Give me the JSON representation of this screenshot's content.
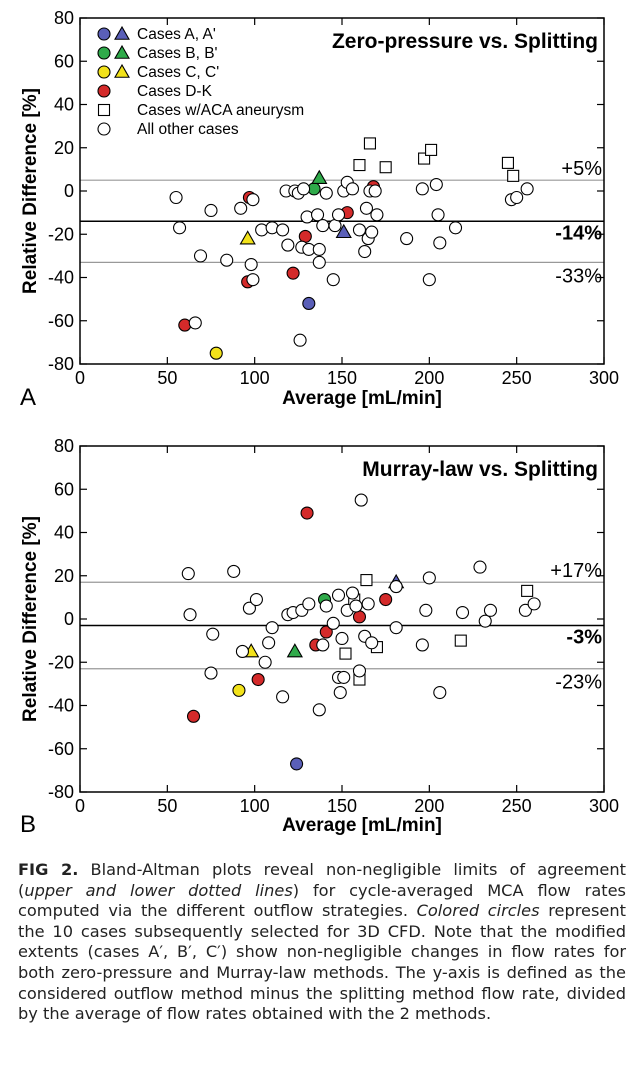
{
  "chart_data": [
    {
      "type": "scatter",
      "panel_letter": "A",
      "title": "Zero-pressure vs. Splitting",
      "xlabel": "Average [mL/min]",
      "ylabel": "Relative Difference [%]",
      "xlim": [
        0,
        300
      ],
      "ylim": [
        -80,
        80
      ],
      "xticks": [
        0,
        50,
        100,
        150,
        200,
        250,
        300
      ],
      "yticks": [
        -80,
        -60,
        -40,
        -20,
        0,
        20,
        40,
        60,
        80
      ],
      "grid": false,
      "legend_position": "top-left",
      "reference_lines": [
        {
          "y": 5,
          "label": "+5%",
          "style": "upper-limit",
          "color": "#999999"
        },
        {
          "y": -14,
          "label": "-14%",
          "style": "mean",
          "color": "#000000"
        },
        {
          "y": -33,
          "label": "-33%",
          "style": "lower-limit",
          "color": "#999999"
        }
      ],
      "series": [
        {
          "name": "Cases A, A'",
          "color": "#5a5fb8",
          "points": [
            {
              "x": 131,
              "y": -52,
              "marker": "circle"
            },
            {
              "x": 151,
              "y": -19,
              "marker": "triangle"
            }
          ]
        },
        {
          "name": "Cases B, B'",
          "color": "#2faa4a",
          "points": [
            {
              "x": 134,
              "y": 1,
              "marker": "circle"
            },
            {
              "x": 137,
              "y": 6,
              "marker": "triangle"
            }
          ]
        },
        {
          "name": "Cases C, C'",
          "color": "#f2e21a",
          "points": [
            {
              "x": 78,
              "y": -75,
              "marker": "circle"
            },
            {
              "x": 96,
              "y": -22,
              "marker": "triangle"
            }
          ]
        },
        {
          "name": "Cases D-K",
          "color": "#d42a2a",
          "points": [
            {
              "x": 60,
              "y": -62,
              "marker": "circle"
            },
            {
              "x": 96,
              "y": -42,
              "marker": "circle"
            },
            {
              "x": 97,
              "y": -3,
              "marker": "circle"
            },
            {
              "x": 122,
              "y": -38,
              "marker": "circle"
            },
            {
              "x": 129,
              "y": -21,
              "marker": "circle"
            },
            {
              "x": 153,
              "y": -10,
              "marker": "circle"
            },
            {
              "x": 168,
              "y": 2,
              "marker": "circle"
            }
          ]
        },
        {
          "name": "Cases w/ACA aneurysm",
          "color": "#ffffff",
          "points": [
            {
              "x": 160,
              "y": 12,
              "marker": "square"
            },
            {
              "x": 166,
              "y": 22,
              "marker": "square"
            },
            {
              "x": 175,
              "y": 11,
              "marker": "square"
            },
            {
              "x": 197,
              "y": 15,
              "marker": "square"
            },
            {
              "x": 201,
              "y": 19,
              "marker": "square"
            },
            {
              "x": 245,
              "y": 13,
              "marker": "square"
            },
            {
              "x": 248,
              "y": 7,
              "marker": "square"
            }
          ]
        },
        {
          "name": "All other cases",
          "color": "#ffffff",
          "points": [
            {
              "x": 55,
              "y": -3,
              "marker": "circle"
            },
            {
              "x": 57,
              "y": -17,
              "marker": "circle"
            },
            {
              "x": 66,
              "y": -61,
              "marker": "circle"
            },
            {
              "x": 69,
              "y": -30,
              "marker": "circle"
            },
            {
              "x": 75,
              "y": -9,
              "marker": "circle"
            },
            {
              "x": 84,
              "y": -32,
              "marker": "circle"
            },
            {
              "x": 92,
              "y": -8,
              "marker": "circle"
            },
            {
              "x": 99,
              "y": -4,
              "marker": "circle"
            },
            {
              "x": 98,
              "y": -34,
              "marker": "circle"
            },
            {
              "x": 99,
              "y": -41,
              "marker": "circle"
            },
            {
              "x": 104,
              "y": -18,
              "marker": "circle"
            },
            {
              "x": 110,
              "y": -17,
              "marker": "circle"
            },
            {
              "x": 116,
              "y": -18,
              "marker": "circle"
            },
            {
              "x": 118,
              "y": 0,
              "marker": "circle"
            },
            {
              "x": 119,
              "y": -25,
              "marker": "circle"
            },
            {
              "x": 123,
              "y": 0,
              "marker": "circle"
            },
            {
              "x": 125,
              "y": -1,
              "marker": "circle"
            },
            {
              "x": 126,
              "y": -69,
              "marker": "circle"
            },
            {
              "x": 127,
              "y": -26,
              "marker": "circle"
            },
            {
              "x": 128,
              "y": 1,
              "marker": "circle"
            },
            {
              "x": 130,
              "y": -12,
              "marker": "circle"
            },
            {
              "x": 131,
              "y": -27,
              "marker": "circle"
            },
            {
              "x": 136,
              "y": -11,
              "marker": "circle"
            },
            {
              "x": 137,
              "y": -33,
              "marker": "circle"
            },
            {
              "x": 137,
              "y": -27,
              "marker": "circle"
            },
            {
              "x": 139,
              "y": -16,
              "marker": "circle"
            },
            {
              "x": 141,
              "y": -1,
              "marker": "circle"
            },
            {
              "x": 145,
              "y": -41,
              "marker": "circle"
            },
            {
              "x": 146,
              "y": -16,
              "marker": "circle"
            },
            {
              "x": 148,
              "y": -11,
              "marker": "circle"
            },
            {
              "x": 151,
              "y": 0,
              "marker": "circle"
            },
            {
              "x": 153,
              "y": 4,
              "marker": "circle"
            },
            {
              "x": 156,
              "y": 1,
              "marker": "circle"
            },
            {
              "x": 160,
              "y": -18,
              "marker": "circle"
            },
            {
              "x": 163,
              "y": -28,
              "marker": "circle"
            },
            {
              "x": 164,
              "y": -8,
              "marker": "circle"
            },
            {
              "x": 165,
              "y": -22,
              "marker": "circle"
            },
            {
              "x": 166,
              "y": 0,
              "marker": "circle"
            },
            {
              "x": 167,
              "y": -19,
              "marker": "circle"
            },
            {
              "x": 169,
              "y": 0,
              "marker": "circle"
            },
            {
              "x": 170,
              "y": -11,
              "marker": "circle"
            },
            {
              "x": 187,
              "y": -22,
              "marker": "circle"
            },
            {
              "x": 196,
              "y": 1,
              "marker": "circle"
            },
            {
              "x": 200,
              "y": -41,
              "marker": "circle"
            },
            {
              "x": 204,
              "y": 3,
              "marker": "circle"
            },
            {
              "x": 205,
              "y": -11,
              "marker": "circle"
            },
            {
              "x": 206,
              "y": -24,
              "marker": "circle"
            },
            {
              "x": 215,
              "y": -17,
              "marker": "circle"
            },
            {
              "x": 247,
              "y": -4,
              "marker": "circle"
            },
            {
              "x": 250,
              "y": -3,
              "marker": "circle"
            },
            {
              "x": 256,
              "y": 1,
              "marker": "circle"
            }
          ]
        }
      ]
    },
    {
      "type": "scatter",
      "panel_letter": "B",
      "title": "Murray-law vs. Splitting",
      "xlabel": "Average [mL/min]",
      "ylabel": "Relative Difference [%]",
      "xlim": [
        0,
        300
      ],
      "ylim": [
        -80,
        80
      ],
      "xticks": [
        0,
        50,
        100,
        150,
        200,
        250,
        300
      ],
      "yticks": [
        -80,
        -60,
        -40,
        -20,
        0,
        20,
        40,
        60,
        80
      ],
      "grid": false,
      "reference_lines": [
        {
          "y": 17,
          "label": "+17%",
          "style": "upper-limit",
          "color": "#999999"
        },
        {
          "y": -3,
          "label": "-3%",
          "style": "mean",
          "color": "#000000"
        },
        {
          "y": -23,
          "label": "-23%",
          "style": "lower-limit",
          "color": "#999999"
        }
      ],
      "series": [
        {
          "name": "Cases A, A'",
          "color": "#5a5fb8",
          "points": [
            {
              "x": 124,
              "y": -67,
              "marker": "circle"
            },
            {
              "x": 181,
              "y": 17,
              "marker": "triangle"
            }
          ]
        },
        {
          "name": "Cases B, B'",
          "color": "#2faa4a",
          "points": [
            {
              "x": 140,
              "y": 9,
              "marker": "circle"
            },
            {
              "x": 123,
              "y": -15,
              "marker": "triangle"
            }
          ]
        },
        {
          "name": "Cases C, C'",
          "color": "#f2e21a",
          "points": [
            {
              "x": 91,
              "y": -33,
              "marker": "circle"
            },
            {
              "x": 98,
              "y": -15,
              "marker": "triangle"
            }
          ]
        },
        {
          "name": "Cases D-K",
          "color": "#d42a2a",
          "points": [
            {
              "x": 65,
              "y": -45,
              "marker": "circle"
            },
            {
              "x": 102,
              "y": -28,
              "marker": "circle"
            },
            {
              "x": 130,
              "y": 49,
              "marker": "circle"
            },
            {
              "x": 135,
              "y": -12,
              "marker": "circle"
            },
            {
              "x": 141,
              "y": -6,
              "marker": "circle"
            },
            {
              "x": 160,
              "y": 1,
              "marker": "circle"
            },
            {
              "x": 175,
              "y": 9,
              "marker": "circle"
            }
          ]
        },
        {
          "name": "Cases w/ACA aneurysm",
          "color": "#ffffff",
          "points": [
            {
              "x": 152,
              "y": -16,
              "marker": "square"
            },
            {
              "x": 157,
              "y": 9,
              "marker": "square"
            },
            {
              "x": 160,
              "y": -28,
              "marker": "square"
            },
            {
              "x": 164,
              "y": 18,
              "marker": "square"
            },
            {
              "x": 170,
              "y": -13,
              "marker": "square"
            },
            {
              "x": 218,
              "y": -10,
              "marker": "square"
            },
            {
              "x": 256,
              "y": 13,
              "marker": "square"
            }
          ]
        },
        {
          "name": "All other cases",
          "color": "#ffffff",
          "points": [
            {
              "x": 62,
              "y": 21,
              "marker": "circle"
            },
            {
              "x": 63,
              "y": 2,
              "marker": "circle"
            },
            {
              "x": 75,
              "y": -25,
              "marker": "circle"
            },
            {
              "x": 76,
              "y": -7,
              "marker": "circle"
            },
            {
              "x": 88,
              "y": 22,
              "marker": "circle"
            },
            {
              "x": 93,
              "y": -15,
              "marker": "circle"
            },
            {
              "x": 97,
              "y": 5,
              "marker": "circle"
            },
            {
              "x": 101,
              "y": 9,
              "marker": "circle"
            },
            {
              "x": 106,
              "y": -20,
              "marker": "circle"
            },
            {
              "x": 108,
              "y": -11,
              "marker": "circle"
            },
            {
              "x": 110,
              "y": -4,
              "marker": "circle"
            },
            {
              "x": 116,
              "y": -36,
              "marker": "circle"
            },
            {
              "x": 119,
              "y": 2,
              "marker": "circle"
            },
            {
              "x": 122,
              "y": 3,
              "marker": "circle"
            },
            {
              "x": 127,
              "y": 4,
              "marker": "circle"
            },
            {
              "x": 131,
              "y": 7,
              "marker": "circle"
            },
            {
              "x": 137,
              "y": -42,
              "marker": "circle"
            },
            {
              "x": 139,
              "y": -12,
              "marker": "circle"
            },
            {
              "x": 141,
              "y": 6,
              "marker": "circle"
            },
            {
              "x": 145,
              "y": -2,
              "marker": "circle"
            },
            {
              "x": 148,
              "y": 11,
              "marker": "circle"
            },
            {
              "x": 148,
              "y": -27,
              "marker": "circle"
            },
            {
              "x": 149,
              "y": -34,
              "marker": "circle"
            },
            {
              "x": 150,
              "y": -9,
              "marker": "circle"
            },
            {
              "x": 151,
              "y": -27,
              "marker": "circle"
            },
            {
              "x": 153,
              "y": 4,
              "marker": "circle"
            },
            {
              "x": 156,
              "y": 12,
              "marker": "circle"
            },
            {
              "x": 158,
              "y": 6,
              "marker": "circle"
            },
            {
              "x": 160,
              "y": -24,
              "marker": "circle"
            },
            {
              "x": 161,
              "y": 55,
              "marker": "circle"
            },
            {
              "x": 163,
              "y": -8,
              "marker": "circle"
            },
            {
              "x": 165,
              "y": 7,
              "marker": "circle"
            },
            {
              "x": 167,
              "y": -11,
              "marker": "circle"
            },
            {
              "x": 181,
              "y": 15,
              "marker": "circle"
            },
            {
              "x": 181,
              "y": -4,
              "marker": "circle"
            },
            {
              "x": 196,
              "y": -12,
              "marker": "circle"
            },
            {
              "x": 198,
              "y": 4,
              "marker": "circle"
            },
            {
              "x": 200,
              "y": 19,
              "marker": "circle"
            },
            {
              "x": 206,
              "y": -34,
              "marker": "circle"
            },
            {
              "x": 219,
              "y": 3,
              "marker": "circle"
            },
            {
              "x": 229,
              "y": 24,
              "marker": "circle"
            },
            {
              "x": 232,
              "y": -1,
              "marker": "circle"
            },
            {
              "x": 235,
              "y": 4,
              "marker": "circle"
            },
            {
              "x": 255,
              "y": 4,
              "marker": "circle"
            },
            {
              "x": 260,
              "y": 7,
              "marker": "circle"
            }
          ]
        }
      ]
    }
  ],
  "legend_entries": [
    {
      "label": "Cases A, A'",
      "color": "#5a5fb8",
      "marker": "circle+triangle"
    },
    {
      "label": "Cases B, B'",
      "color": "#2faa4a",
      "marker": "circle+triangle"
    },
    {
      "label": "Cases C, C'",
      "color": "#f2e21a",
      "marker": "circle+triangle"
    },
    {
      "label": "Cases D-K",
      "color": "#d42a2a",
      "marker": "circle"
    },
    {
      "label": "Cases w/ACA aneurysm",
      "color": "#ffffff",
      "marker": "square"
    },
    {
      "label": "All other cases",
      "color": "#ffffff",
      "marker": "circle"
    }
  ],
  "caption": {
    "label": "FIG 2.",
    "t1": " Bland-Altman plots reveal non-negligible limits of agreement (",
    "i1": "upper and lower dotted lines",
    "t2": ") for cycle-averaged MCA flow rates computed via the different outflow strategies. ",
    "i2": "Colored circles",
    "t3": " represent the 10 cases subsequently selected for 3D CFD. Note that the modified extents (cases A′, B′, C′) show non-negligible changes in flow rates for both zero-pressure and Murray-law methods. The y-axis is defined as the considered outflow method minus the splitting method flow rate, divided by the average of flow rates obtained with the 2 methods."
  }
}
